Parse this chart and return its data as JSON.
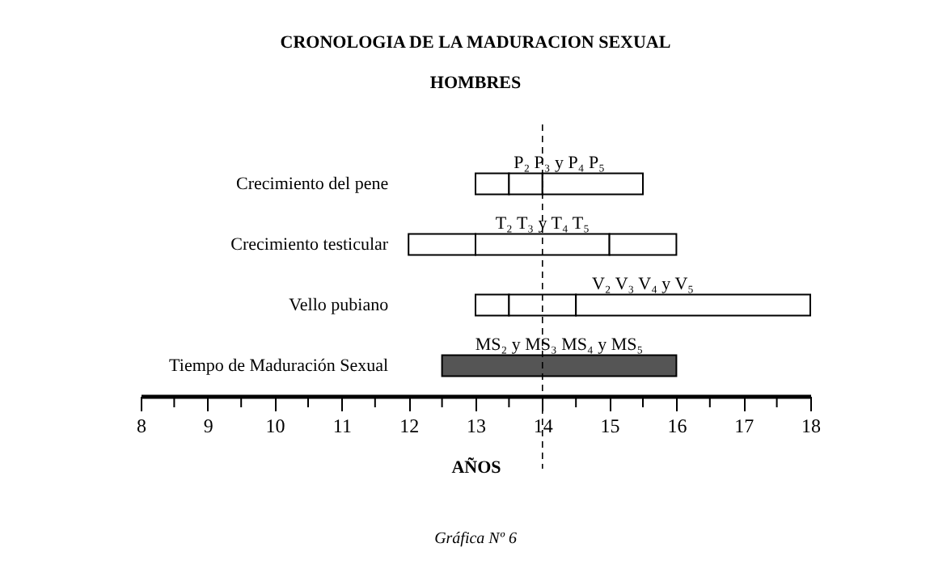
{
  "chart_data": {
    "type": "bar",
    "orientation": "horizontal",
    "title": "CRONOLOGIA DE LA MADURACION SEXUAL",
    "subtitle": "HOMBRES",
    "xlabel": "AÑOS",
    "categories": [
      "Crecimiento del pene",
      "Crecimiento testicular",
      "Vello pubiano",
      "Tiempo de Maduración Sexual"
    ],
    "series": [
      {
        "base": [
          13,
          12,
          13,
          null
        ],
        "values": [
          0.5,
          1,
          0.5,
          null
        ],
        "color": "#ffffff"
      },
      {
        "base": [
          13.5,
          13,
          13.5,
          null
        ],
        "values": [
          0.5,
          2,
          1,
          null
        ],
        "color": "#ffffff"
      },
      {
        "base": [
          14,
          15,
          14.5,
          null
        ],
        "values": [
          1.5,
          1,
          3.5,
          null
        ],
        "color": "#ffffff"
      },
      {
        "base": [
          null,
          null,
          null,
          12.5
        ],
        "values": [
          null,
          null,
          null,
          3.5
        ],
        "color": "#555555"
      }
    ],
    "xlim": [
      8,
      18
    ],
    "xticks": [
      8,
      {
        "value": 8.5,
        "label": null
      },
      9,
      {
        "value": 9.5,
        "label": null
      },
      10,
      {
        "value": 10.5,
        "label": null
      },
      11,
      {
        "value": 11.5,
        "label": null
      },
      12,
      {
        "value": 12.5,
        "label": null
      },
      13,
      {
        "value": 13.5,
        "label": null
      },
      14,
      {
        "value": 14.5,
        "label": null
      },
      15,
      {
        "value": 15.5,
        "label": null
      },
      16,
      {
        "value": 16.5,
        "label": null
      },
      17,
      {
        "value": 17.5,
        "label": null
      },
      18
    ],
    "ref_lines": [
      {
        "axis": "x",
        "value": 14,
        "line_style": "dashed"
      }
    ],
    "annotations": [
      "P₂ P₃ y P₄ P₅",
      "T₂ T₃ y T₄ T₅",
      "V₂ V₃ V₄ y V₅",
      "MS₂ y MS₃ MS₄ y MS₅",
      "Gráfica Nº 6"
    ]
  }
}
